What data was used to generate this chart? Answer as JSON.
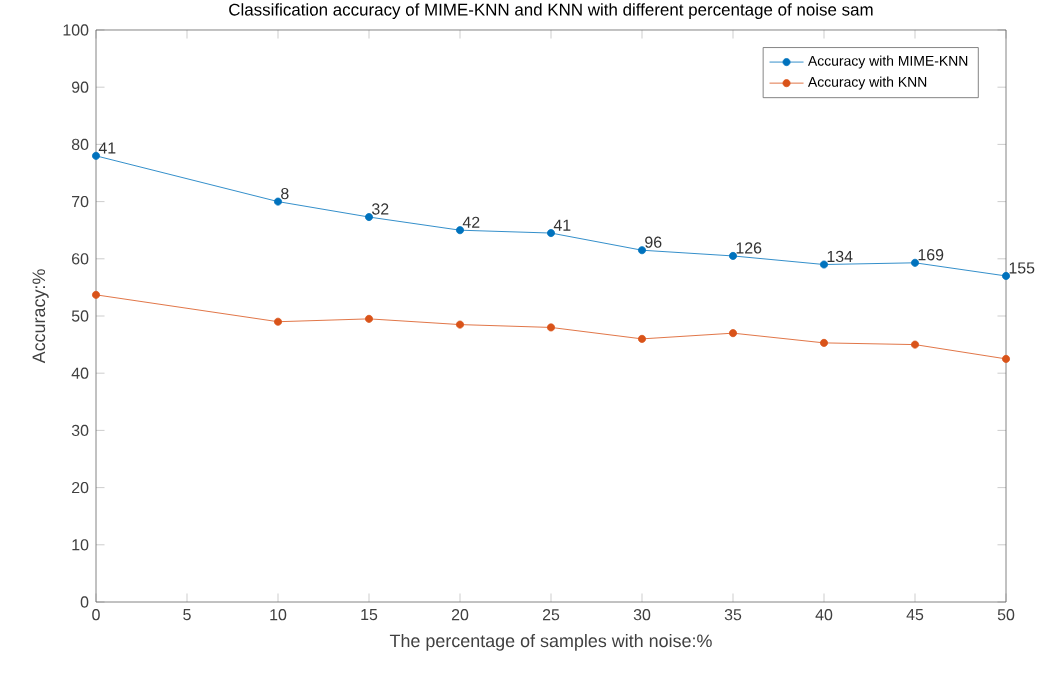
{
  "chart_data": {
    "type": "line",
    "title": "Classification accuracy of MIME-KNN and KNN with different percentage of noise sam",
    "xlabel": "The percentage of samples with noise:%",
    "ylabel": "Accuracy:%",
    "x": [
      0,
      10,
      15,
      20,
      25,
      30,
      35,
      40,
      45,
      50
    ],
    "series": [
      {
        "name": "Accuracy with MIME-KNN",
        "color": "#0072bd",
        "values": [
          78,
          70,
          67.3,
          65,
          64.5,
          61.5,
          60.5,
          59,
          59.3,
          57
        ]
      },
      {
        "name": "Accuracy with KNN",
        "color": "#d95319",
        "values": [
          53.7,
          49,
          49.5,
          48.5,
          48,
          46,
          47,
          45.3,
          45,
          42.5
        ]
      }
    ],
    "xlim": [
      0,
      50
    ],
    "xticks": [
      0,
      5,
      10,
      15,
      20,
      25,
      30,
      35,
      40,
      45,
      50
    ],
    "ylim": [
      0,
      100
    ],
    "yticks": [
      0,
      10,
      20,
      30,
      40,
      50,
      60,
      70,
      80,
      90,
      100
    ],
    "marker": "circle",
    "legend": "top right",
    "grid": false,
    "annotations": [
      {
        "text": "41",
        "x": 0,
        "y": 78
      },
      {
        "text": "8",
        "x": 10,
        "y": 70
      },
      {
        "text": "32",
        "x": 15,
        "y": 67.3
      },
      {
        "text": "42",
        "x": 20,
        "y": 65
      },
      {
        "text": "41",
        "x": 25,
        "y": 64.5
      },
      {
        "text": "96",
        "x": 30,
        "y": 61.5
      },
      {
        "text": "126",
        "x": 35,
        "y": 60.5
      },
      {
        "text": "134",
        "x": 40,
        "y": 59
      },
      {
        "text": "169",
        "x": 45,
        "y": 59.3
      },
      {
        "text": "155",
        "x": 50,
        "y": 57
      }
    ]
  }
}
